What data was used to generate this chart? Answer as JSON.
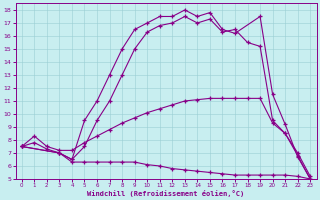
{
  "xlabel": "Windchill (Refroidissement éolien,°C)",
  "bg_color": "#c8eef0",
  "line_color": "#880088",
  "xlim": [
    -0.5,
    23.5
  ],
  "ylim": [
    5,
    18.5
  ],
  "xticks": [
    0,
    1,
    2,
    3,
    4,
    5,
    6,
    7,
    8,
    9,
    10,
    11,
    12,
    13,
    14,
    15,
    16,
    17,
    18,
    19,
    20,
    21,
    22,
    23
  ],
  "yticks": [
    5,
    6,
    7,
    8,
    9,
    10,
    11,
    12,
    13,
    14,
    15,
    16,
    17,
    18
  ],
  "line1_x": [
    0,
    3,
    4,
    5,
    6,
    7,
    8,
    9,
    10,
    11,
    12,
    13,
    14,
    15,
    16,
    17,
    19,
    20,
    21,
    22,
    23
  ],
  "line1_y": [
    7.5,
    7.0,
    6.5,
    9.5,
    11.0,
    13.0,
    15.0,
    16.5,
    17.0,
    17.5,
    17.5,
    18.0,
    17.5,
    17.8,
    16.5,
    16.2,
    17.5,
    11.5,
    9.2,
    6.7,
    5.0
  ],
  "line2_x": [
    0,
    3,
    4,
    5,
    6,
    7,
    8,
    9,
    10,
    11,
    12,
    13,
    14,
    15,
    16,
    17,
    18,
    19,
    20,
    21,
    22,
    23
  ],
  "line2_y": [
    7.5,
    7.0,
    6.5,
    7.5,
    9.5,
    11.0,
    13.0,
    15.0,
    16.3,
    16.8,
    17.0,
    17.5,
    17.0,
    17.3,
    16.3,
    16.5,
    15.5,
    15.2,
    9.5,
    8.5,
    6.8,
    5.0
  ],
  "line3_x": [
    0,
    1,
    2,
    3,
    4,
    5,
    6,
    7,
    8,
    9,
    10,
    11,
    12,
    13,
    14,
    15,
    16,
    17,
    18,
    19,
    20,
    21,
    22,
    23
  ],
  "line3_y": [
    7.5,
    8.3,
    7.5,
    7.2,
    7.2,
    7.8,
    8.3,
    8.8,
    9.3,
    9.7,
    10.1,
    10.4,
    10.7,
    11.0,
    11.1,
    11.2,
    11.2,
    11.2,
    11.2,
    11.2,
    9.3,
    8.5,
    7.0,
    5.2
  ],
  "line4_x": [
    0,
    1,
    2,
    3,
    4,
    5,
    6,
    7,
    8,
    9,
    10,
    11,
    12,
    13,
    14,
    15,
    16,
    17,
    18,
    19,
    20,
    21,
    22,
    23
  ],
  "line4_y": [
    7.5,
    7.8,
    7.3,
    7.0,
    6.3,
    6.3,
    6.3,
    6.3,
    6.3,
    6.3,
    6.1,
    6.0,
    5.8,
    5.7,
    5.6,
    5.5,
    5.4,
    5.3,
    5.3,
    5.3,
    5.3,
    5.3,
    5.2,
    5.0
  ]
}
